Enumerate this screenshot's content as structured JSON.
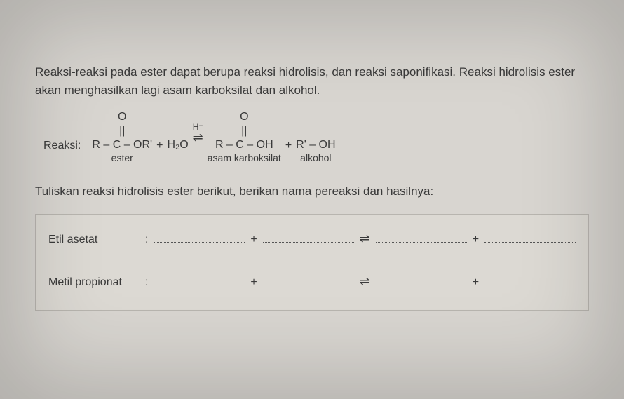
{
  "paragraph": "Reaksi-reaksi pada ester dapat berupa reaksi hidrolisis, dan reaksi saponifikasi. Reaksi hidrolisis ester akan menghasilkan lagi asam karboksilat dan alkohol.",
  "reaction": {
    "label": "Reaksi:",
    "ester": {
      "top": "O",
      "dbl": "||",
      "main": "R – C – OR'",
      "sub": "ester"
    },
    "plus1": "+",
    "water": "H₂O",
    "eq_sup": "H⁺",
    "eq_arrow": "⇌",
    "acid": {
      "top": "O",
      "dbl": "||",
      "main": "R – C – OH",
      "sub": "asam karboksilat"
    },
    "plus2": "+",
    "alcohol": {
      "main": "R' – OH",
      "sub": "alkohol"
    }
  },
  "instruction": "Tuliskan reaksi hidrolisis ester berikut, berikan nama pereaksi dan hasilnya:",
  "rows": [
    {
      "name": "Etil asetat"
    },
    {
      "name": "Metil propionat"
    }
  ],
  "symbols": {
    "colon": ":",
    "plus": "+",
    "eq": "⇌"
  }
}
